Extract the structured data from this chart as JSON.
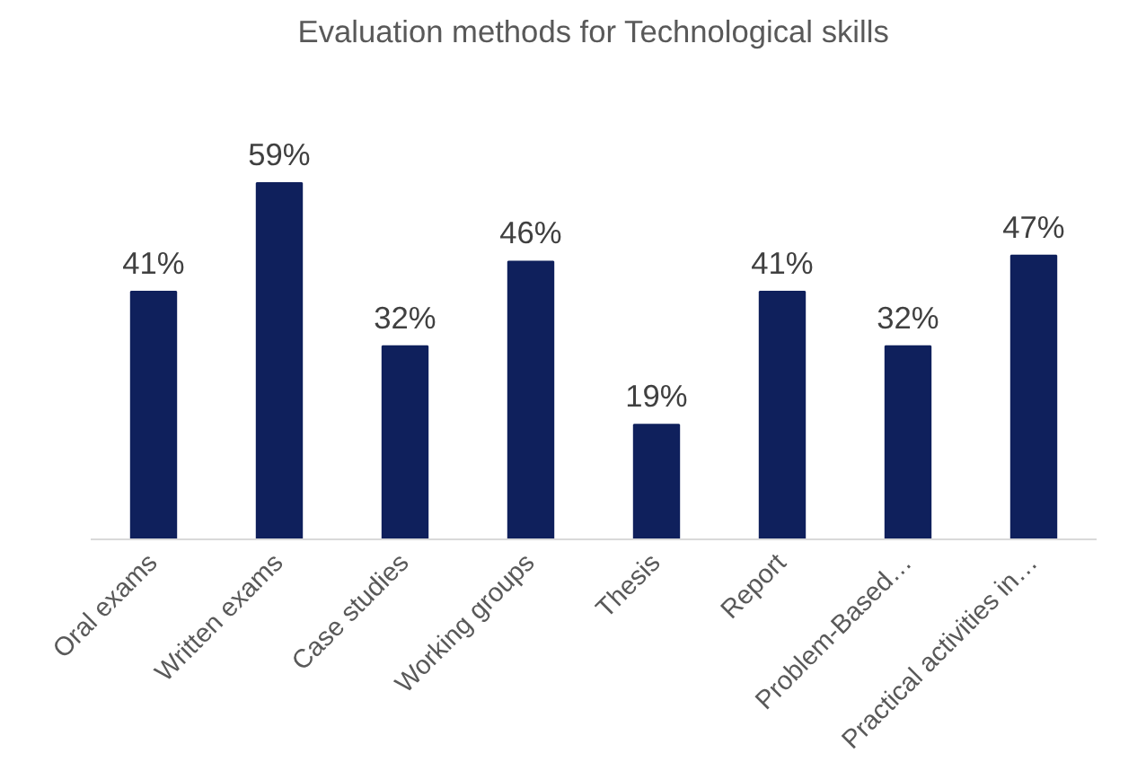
{
  "chart_data": {
    "type": "bar",
    "title": "Evaluation methods for Technological skills",
    "categories": [
      "Oral exams",
      "Written exams",
      "Case studies",
      "Working groups",
      "Thesis",
      "Report",
      "Problem-Based…",
      "Practical activities in…"
    ],
    "values": [
      41,
      59,
      32,
      46,
      19,
      41,
      32,
      47
    ],
    "value_labels": [
      "41%",
      "59%",
      "32%",
      "46%",
      "19%",
      "41%",
      "32%",
      "47%"
    ],
    "color": "#0f205c"
  }
}
